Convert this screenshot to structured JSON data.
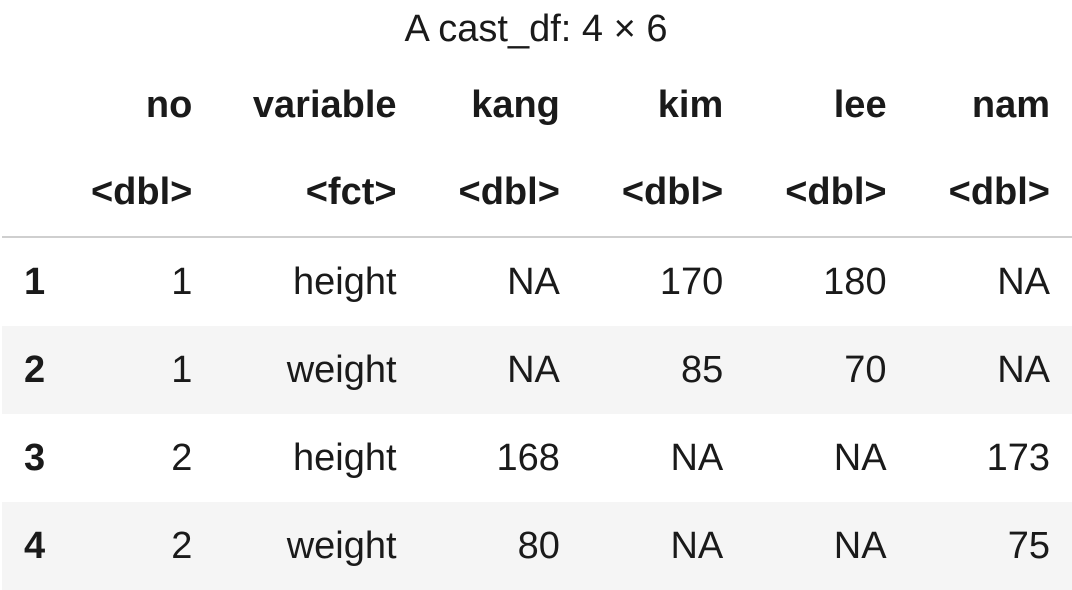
{
  "caption": "A cast_df: 4 × 6",
  "columns": [
    {
      "name": "no",
      "type": "<dbl>"
    },
    {
      "name": "variable",
      "type": "<fct>"
    },
    {
      "name": "kang",
      "type": "<dbl>"
    },
    {
      "name": "kim",
      "type": "<dbl>"
    },
    {
      "name": "lee",
      "type": "<dbl>"
    },
    {
      "name": "nam",
      "type": "<dbl>"
    }
  ],
  "rows": [
    {
      "index": "1",
      "cells": [
        "1",
        "height",
        "NA",
        "170",
        "180",
        "NA"
      ]
    },
    {
      "index": "2",
      "cells": [
        "1",
        "weight",
        "NA",
        "85",
        "70",
        "NA"
      ]
    },
    {
      "index": "3",
      "cells": [
        "2",
        "height",
        "168",
        "NA",
        "NA",
        "173"
      ]
    },
    {
      "index": "4",
      "cells": [
        "2",
        "weight",
        "80",
        "NA",
        "NA",
        "75"
      ]
    }
  ]
}
